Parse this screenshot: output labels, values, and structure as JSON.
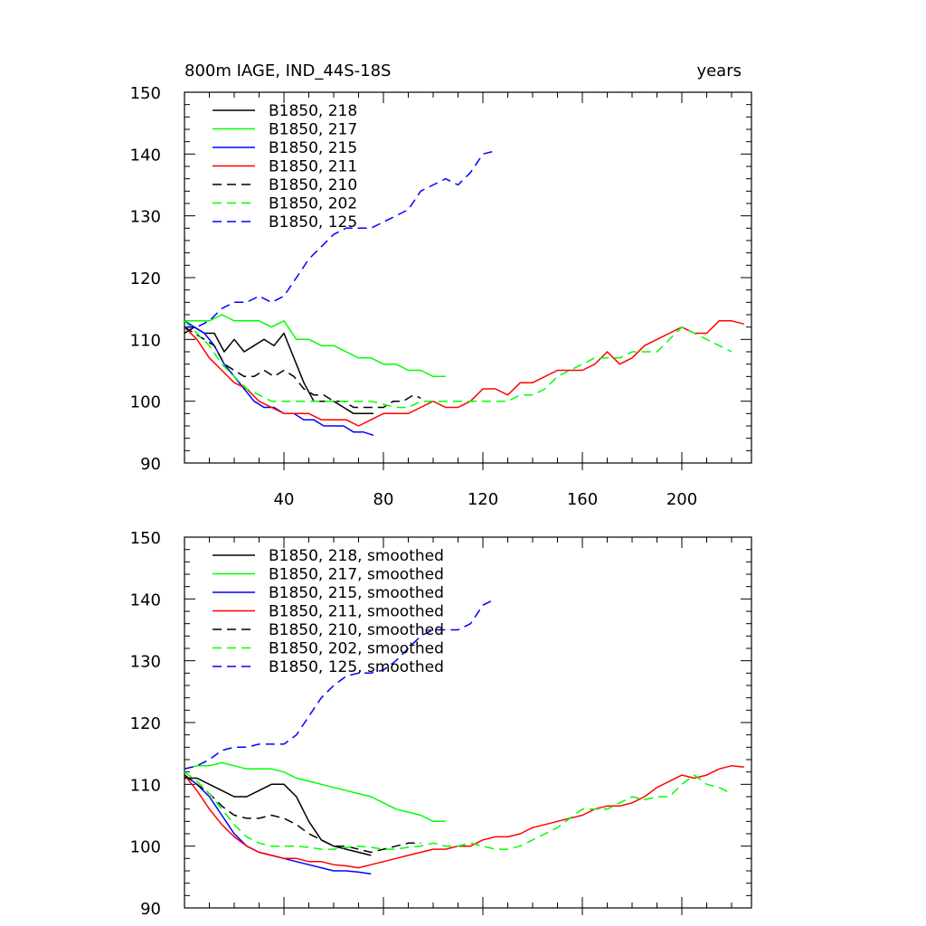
{
  "panel_title_left": "800m IAGE, IND_44S-18S",
  "panel_title_right": "years",
  "chart_data": [
    {
      "type": "line",
      "title": "800m IAGE, IND_44S-18S",
      "units": "years",
      "xlim": [
        0,
        228
      ],
      "ylim": [
        90,
        150
      ],
      "xticks": [
        40,
        80,
        120,
        160,
        200
      ],
      "xtick_labels": [
        "40",
        "80",
        "120",
        "160",
        "200"
      ],
      "yticks": [
        90,
        100,
        110,
        120,
        130,
        140,
        150
      ],
      "ytick_labels": [
        "90",
        "100",
        "110",
        "120",
        "130",
        "140",
        "150"
      ],
      "grid": false,
      "legend_position": "top-left",
      "series": [
        {
          "name": "B1850, 218",
          "color": "#000000",
          "dash": "solid",
          "x": [
            0,
            4,
            8,
            12,
            16,
            20,
            24,
            28,
            32,
            36,
            40,
            44,
            48,
            52,
            56,
            60,
            64,
            68,
            72,
            76
          ],
          "y": [
            111,
            112,
            111,
            111,
            108,
            110,
            108,
            109,
            110,
            109,
            111,
            107,
            103,
            100,
            100,
            100,
            99,
            98,
            98,
            98
          ]
        },
        {
          "name": "B1850, 217",
          "color": "#00ff00",
          "dash": "solid",
          "x": [
            0,
            5,
            10,
            15,
            20,
            25,
            30,
            35,
            40,
            45,
            50,
            55,
            60,
            65,
            70,
            75,
            80,
            85,
            90,
            95,
            100,
            105
          ],
          "y": [
            113,
            113,
            113,
            114,
            113,
            113,
            113,
            112,
            113,
            110,
            110,
            109,
            109,
            108,
            107,
            107,
            106,
            106,
            105,
            105,
            104,
            104
          ]
        },
        {
          "name": "B1850, 215",
          "color": "#0000ff",
          "dash": "solid",
          "x": [
            0,
            4,
            8,
            12,
            16,
            20,
            24,
            28,
            32,
            36,
            40,
            44,
            48,
            52,
            56,
            60,
            64,
            68,
            72,
            76
          ],
          "y": [
            113,
            112,
            111,
            109,
            106,
            104,
            102,
            100,
            99,
            99,
            98,
            98,
            97,
            97,
            96,
            96,
            96,
            95,
            95,
            94.5
          ]
        },
        {
          "name": "B1850, 211",
          "color": "#ff0000",
          "dash": "solid",
          "x": [
            0,
            5,
            10,
            15,
            20,
            25,
            30,
            35,
            40,
            45,
            50,
            55,
            60,
            65,
            70,
            75,
            80,
            85,
            90,
            95,
            100,
            105,
            110,
            115,
            120,
            125,
            130,
            135,
            140,
            145,
            150,
            155,
            160,
            165,
            170,
            175,
            180,
            185,
            190,
            195,
            200,
            205,
            210,
            215,
            220,
            225
          ],
          "y": [
            112,
            110,
            107,
            105,
            103,
            102,
            100,
            99,
            98,
            98,
            98,
            97,
            97,
            97,
            96,
            97,
            98,
            98,
            98,
            99,
            100,
            99,
            99,
            100,
            102,
            102,
            101,
            103,
            103,
            104,
            105,
            105,
            105,
            106,
            108,
            106,
            107,
            109,
            110,
            111,
            112,
            111,
            111,
            113,
            113,
            112.5
          ]
        },
        {
          "name": "B1850, 210",
          "color": "#000000",
          "dash": "dashed",
          "x": [
            0,
            4,
            8,
            12,
            16,
            20,
            24,
            28,
            32,
            36,
            40,
            44,
            48,
            52,
            56,
            60,
            64,
            68,
            72,
            76,
            80,
            84,
            88,
            92,
            95
          ],
          "y": [
            112,
            111,
            110,
            109,
            106,
            105,
            104,
            104,
            105,
            104,
            105,
            104,
            102,
            101,
            101,
            100,
            100,
            99,
            99,
            99,
            99,
            100,
            100,
            101,
            100.5
          ]
        },
        {
          "name": "B1850, 202",
          "color": "#00ff00",
          "dash": "dashed",
          "x": [
            0,
            5,
            10,
            15,
            20,
            25,
            30,
            35,
            40,
            45,
            50,
            55,
            60,
            65,
            70,
            75,
            80,
            85,
            90,
            95,
            100,
            105,
            110,
            115,
            120,
            125,
            130,
            135,
            140,
            145,
            150,
            155,
            160,
            165,
            170,
            175,
            180,
            185,
            190,
            195,
            200,
            205,
            210,
            215,
            220
          ],
          "y": [
            113,
            111,
            109,
            106,
            104,
            102,
            101,
            100,
            100,
            100,
            100,
            100,
            100,
            100,
            100,
            100,
            99.5,
            99,
            99,
            100,
            100,
            100,
            100,
            100,
            100,
            100,
            100,
            101,
            101,
            102,
            104,
            105,
            106,
            107,
            107,
            107,
            108,
            108,
            108,
            110,
            112,
            111,
            110,
            109,
            108
          ]
        },
        {
          "name": "B1850, 125",
          "color": "#0000ff",
          "dash": "dashed",
          "x": [
            0,
            5,
            10,
            15,
            20,
            25,
            30,
            35,
            40,
            45,
            50,
            55,
            60,
            65,
            70,
            75,
            80,
            85,
            90,
            95,
            100,
            105,
            110,
            115,
            120,
            125
          ],
          "y": [
            112,
            112,
            113,
            115,
            116,
            116,
            117,
            116,
            117,
            120,
            123,
            125,
            127,
            128,
            128,
            128,
            129,
            130,
            131,
            134,
            135,
            136,
            135,
            137,
            140,
            140.5
          ]
        }
      ]
    },
    {
      "type": "line",
      "title": "",
      "xlim": [
        0,
        228
      ],
      "ylim": [
        90,
        150
      ],
      "yticks": [
        90,
        100,
        110,
        120,
        130,
        140,
        150
      ],
      "ytick_labels": [
        "90",
        "100",
        "110",
        "120",
        "130",
        "140",
        "150"
      ],
      "grid": false,
      "legend_position": "top-left",
      "series": [
        {
          "name": "B1850, 218, smoothed",
          "color": "#000000",
          "dash": "solid",
          "x": [
            0,
            5,
            10,
            15,
            20,
            25,
            30,
            35,
            40,
            45,
            50,
            55,
            60,
            65,
            70,
            75
          ],
          "y": [
            111,
            111,
            110,
            109,
            108,
            108,
            109,
            110,
            110,
            108,
            104,
            101,
            100,
            99.5,
            99,
            98.5
          ]
        },
        {
          "name": "B1850, 217, smoothed",
          "color": "#00ff00",
          "dash": "solid",
          "x": [
            0,
            5,
            10,
            15,
            20,
            25,
            30,
            35,
            40,
            45,
            50,
            55,
            60,
            65,
            70,
            75,
            80,
            85,
            90,
            95,
            100,
            105
          ],
          "y": [
            112.5,
            113,
            113,
            113.5,
            113,
            112.5,
            112.5,
            112.5,
            112,
            111,
            110.5,
            110,
            109.5,
            109,
            108.5,
            108,
            107,
            106,
            105.5,
            105,
            104,
            104
          ]
        },
        {
          "name": "B1850, 215, smoothed",
          "color": "#0000ff",
          "dash": "solid",
          "x": [
            0,
            5,
            10,
            15,
            20,
            25,
            30,
            35,
            40,
            45,
            50,
            55,
            60,
            65,
            70,
            75
          ],
          "y": [
            111.5,
            110,
            108,
            105,
            102,
            100,
            99,
            98.5,
            98,
            97.5,
            97,
            96.5,
            96,
            96,
            95.8,
            95.5
          ]
        },
        {
          "name": "B1850, 211, smoothed",
          "color": "#ff0000",
          "dash": "solid",
          "x": [
            0,
            5,
            10,
            15,
            20,
            25,
            30,
            35,
            40,
            45,
            50,
            55,
            60,
            65,
            70,
            75,
            80,
            85,
            90,
            95,
            100,
            105,
            110,
            115,
            120,
            125,
            130,
            135,
            140,
            145,
            150,
            155,
            160,
            165,
            170,
            175,
            180,
            185,
            190,
            195,
            200,
            205,
            210,
            215,
            220,
            225
          ],
          "y": [
            111.5,
            109,
            106,
            103.5,
            101.5,
            100,
            99,
            98.5,
            98,
            98,
            97.5,
            97.5,
            97,
            96.8,
            96.5,
            97,
            97.5,
            98,
            98.5,
            99,
            99.5,
            99.5,
            100,
            100,
            101,
            101.5,
            101.5,
            102,
            103,
            103.5,
            104,
            104.5,
            105,
            106,
            106.5,
            106.5,
            107,
            108,
            109.5,
            110.5,
            111.5,
            111,
            111.5,
            112.5,
            113,
            112.8
          ]
        },
        {
          "name": "B1850, 210, smoothed",
          "color": "#000000",
          "dash": "dashed",
          "x": [
            0,
            5,
            10,
            15,
            20,
            25,
            30,
            35,
            40,
            45,
            50,
            55,
            60,
            65,
            70,
            75,
            80,
            85,
            90,
            95
          ],
          "y": [
            111.5,
            110,
            108.5,
            106.5,
            105,
            104.5,
            104.5,
            105,
            104.5,
            103.5,
            102,
            101,
            100,
            100,
            99.5,
            99,
            99.5,
            100,
            100.5,
            100.5
          ]
        },
        {
          "name": "B1850, 202, smoothed",
          "color": "#00ff00",
          "dash": "dashed",
          "x": [
            0,
            5,
            10,
            15,
            20,
            25,
            30,
            35,
            40,
            45,
            50,
            55,
            60,
            65,
            70,
            75,
            80,
            85,
            90,
            95,
            100,
            105,
            110,
            115,
            120,
            125,
            130,
            135,
            140,
            145,
            150,
            155,
            160,
            165,
            170,
            175,
            180,
            185,
            190,
            195,
            200,
            205,
            210,
            215,
            220
          ],
          "y": [
            112,
            110.5,
            108.5,
            106,
            103.5,
            101.5,
            100.5,
            100,
            100,
            100,
            99.8,
            99.5,
            99.5,
            99.8,
            100,
            99.8,
            99.5,
            99.5,
            99.8,
            100,
            100.5,
            100,
            100,
            100.5,
            100,
            99.5,
            99.5,
            100,
            101,
            102,
            103,
            104.5,
            106,
            106,
            106,
            107,
            108,
            107.5,
            108,
            108,
            110,
            111.5,
            110,
            109.5,
            108.5
          ]
        },
        {
          "name": "B1850, 125, smoothed",
          "color": "#0000ff",
          "dash": "dashed",
          "x": [
            0,
            5,
            10,
            15,
            20,
            25,
            30,
            35,
            40,
            45,
            50,
            55,
            60,
            65,
            70,
            75,
            80,
            85,
            90,
            95,
            100,
            105,
            110,
            115,
            120,
            125
          ],
          "y": [
            112.5,
            113,
            114,
            115.5,
            116,
            116,
            116.5,
            116.5,
            116.5,
            118,
            121,
            124,
            126,
            127.5,
            128,
            128,
            128.5,
            130,
            132,
            134,
            135,
            135,
            135,
            136,
            139,
            140
          ]
        }
      ]
    }
  ]
}
